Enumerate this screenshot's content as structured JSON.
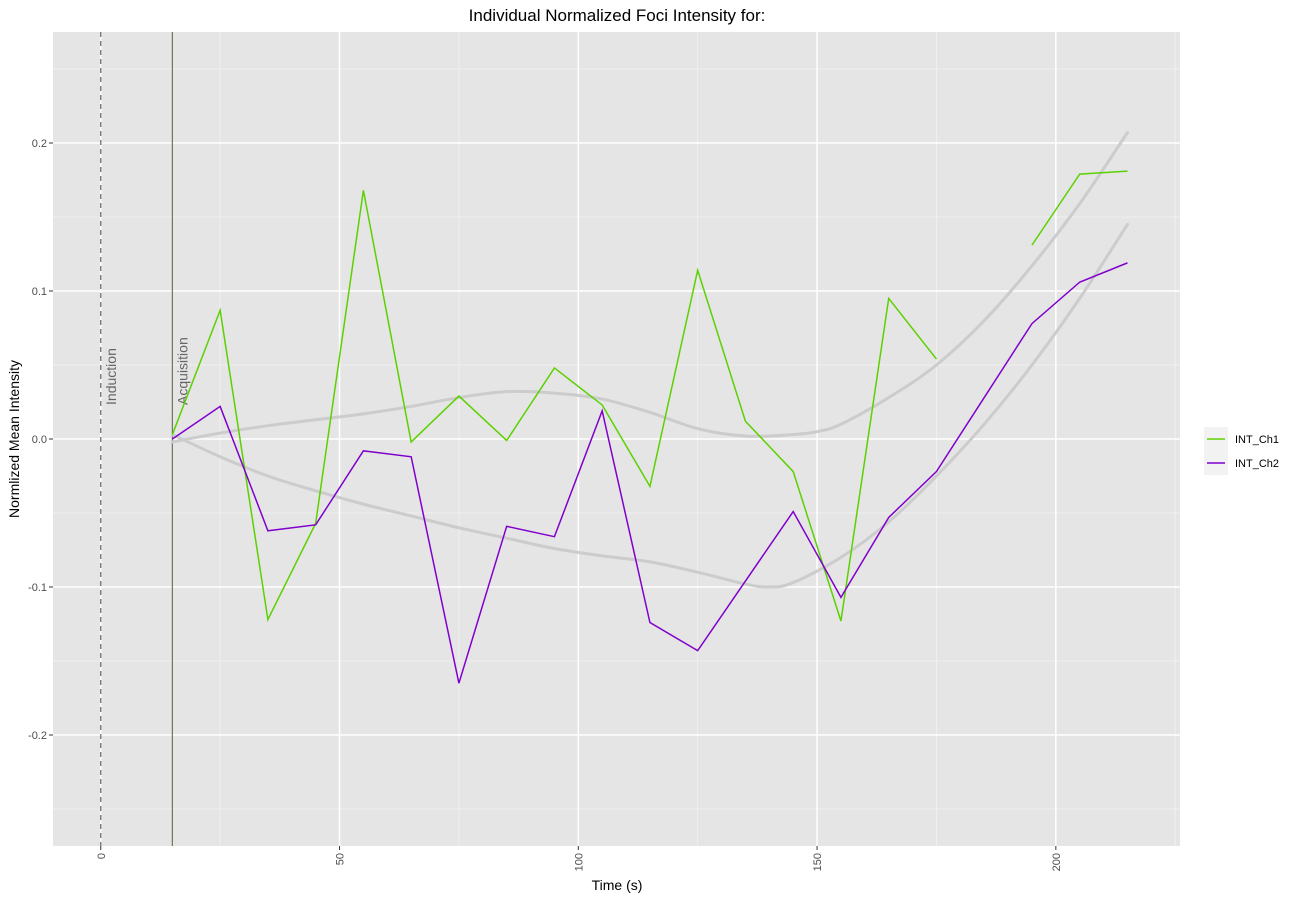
{
  "chart_data": {
    "type": "line",
    "title": "Individual Normalized Foci Intensity for:",
    "xlabel": "Time (s)",
    "ylabel": "Normlized Mean Intensity",
    "xlim": [
      -10,
      226
    ],
    "ylim": [
      -0.275,
      0.275
    ],
    "x_ticks": [
      0,
      50,
      100,
      150,
      200
    ],
    "x_tick_labels": [
      "0",
      "50",
      "100",
      "150",
      "200"
    ],
    "y_ticks": [
      -0.2,
      -0.1,
      0.0,
      0.1,
      0.2
    ],
    "y_tick_labels": [
      "-0.2",
      "-0.1",
      "0.0",
      "0.1",
      "0.2"
    ],
    "grid": true,
    "legend_position": "right",
    "vlines": [
      {
        "x": 0,
        "label": "Induction",
        "style": "dashed",
        "color": "#666666"
      },
      {
        "x": 15,
        "label": "Acquisition",
        "style": "solid",
        "color": "#6e7561"
      }
    ],
    "series": [
      {
        "name": "INT_Ch1",
        "color": "#5cd100",
        "points": [
          [
            15,
            0.003
          ],
          [
            25,
            0.087
          ],
          [
            35,
            -0.122
          ],
          [
            45,
            -0.057
          ],
          [
            55,
            0.168
          ],
          [
            65,
            -0.002
          ],
          [
            75,
            0.029
          ],
          [
            85,
            -0.001
          ],
          [
            95,
            0.048
          ],
          [
            105,
            0.023
          ],
          [
            115,
            -0.032
          ],
          [
            125,
            0.114
          ],
          [
            135,
            0.012
          ],
          [
            145,
            -0.022
          ],
          [
            155,
            -0.123
          ],
          [
            165,
            0.095
          ],
          [
            175,
            0.054
          ],
          [
            185,
            null
          ],
          [
            195,
            0.131
          ],
          [
            205,
            0.179
          ],
          [
            215,
            0.181
          ]
        ]
      },
      {
        "name": "INT_Ch2",
        "color": "#8000cc",
        "points": [
          [
            15,
            0.0
          ],
          [
            25,
            0.022
          ],
          [
            35,
            -0.062
          ],
          [
            45,
            -0.058
          ],
          [
            55,
            -0.008
          ],
          [
            65,
            -0.012
          ],
          [
            75,
            -0.165
          ],
          [
            85,
            -0.059
          ],
          [
            95,
            -0.066
          ],
          [
            105,
            0.019
          ],
          [
            115,
            -0.124
          ],
          [
            125,
            -0.143
          ],
          [
            135,
            -0.096
          ],
          [
            145,
            -0.049
          ],
          [
            155,
            -0.107
          ],
          [
            165,
            -0.053
          ],
          [
            175,
            -0.022
          ],
          [
            185,
            0.028
          ],
          [
            195,
            0.078
          ],
          [
            205,
            0.106
          ],
          [
            215,
            0.119
          ]
        ]
      }
    ],
    "smooth_curves": [
      {
        "color": "#cccccc",
        "points": [
          [
            15,
            -0.002
          ],
          [
            25,
            0.004
          ],
          [
            35,
            0.009
          ],
          [
            45,
            0.013
          ],
          [
            55,
            0.017
          ],
          [
            65,
            0.022
          ],
          [
            75,
            0.028
          ],
          [
            85,
            0.032
          ],
          [
            95,
            0.031
          ],
          [
            105,
            0.027
          ],
          [
            115,
            0.018
          ],
          [
            125,
            0.007
          ],
          [
            135,
            0.002
          ],
          [
            145,
            0.003
          ],
          [
            150,
            0.005
          ],
          [
            155,
            0.01
          ],
          [
            165,
            0.028
          ],
          [
            175,
            0.05
          ],
          [
            185,
            0.08
          ],
          [
            195,
            0.117
          ],
          [
            205,
            0.159
          ],
          [
            215,
            0.207
          ]
        ]
      },
      {
        "color": "#cccccc",
        "points": [
          [
            15,
            0.003
          ],
          [
            25,
            -0.012
          ],
          [
            35,
            -0.025
          ],
          [
            45,
            -0.035
          ],
          [
            55,
            -0.044
          ],
          [
            65,
            -0.052
          ],
          [
            75,
            -0.06
          ],
          [
            85,
            -0.067
          ],
          [
            95,
            -0.074
          ],
          [
            105,
            -0.079
          ],
          [
            115,
            -0.083
          ],
          [
            125,
            -0.09
          ],
          [
            135,
            -0.098
          ],
          [
            140,
            -0.1
          ],
          [
            145,
            -0.097
          ],
          [
            155,
            -0.08
          ],
          [
            165,
            -0.056
          ],
          [
            175,
            -0.025
          ],
          [
            185,
            0.01
          ],
          [
            195,
            0.05
          ],
          [
            205,
            0.095
          ],
          [
            215,
            0.145
          ]
        ]
      }
    ]
  }
}
